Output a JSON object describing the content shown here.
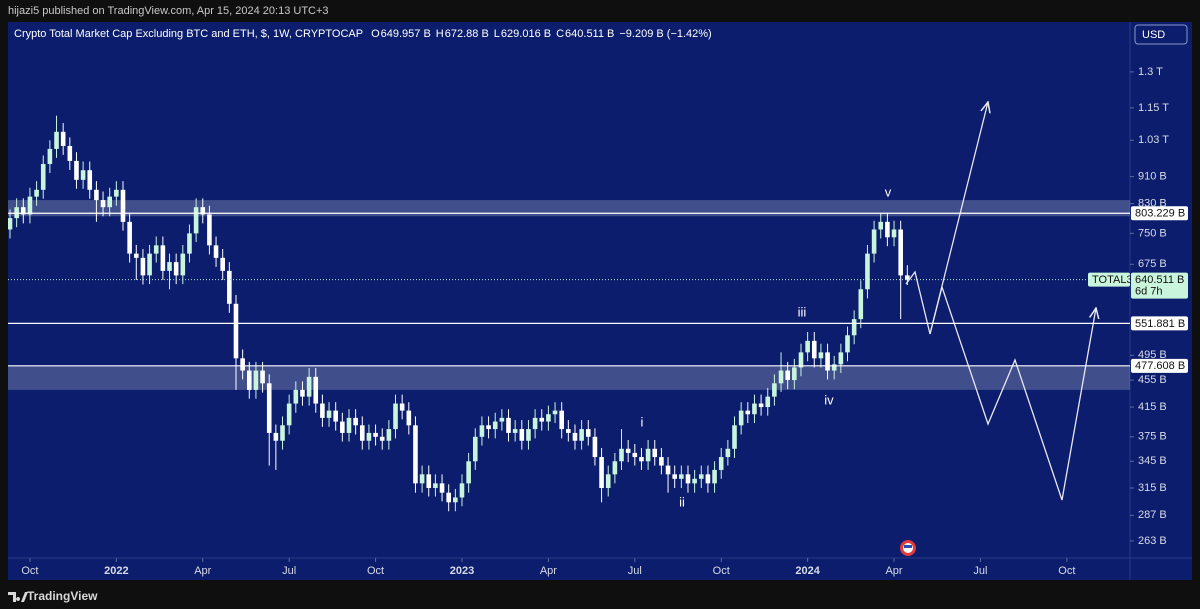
{
  "header": {
    "publisher": "hijazi5 published on TradingView.com, Apr 15, 2024 20:13 UTC+3"
  },
  "footer": {
    "brand": "TradingView"
  },
  "chart_data": {
    "type": "candlestick",
    "title": "Crypto Total Market Cap Excluding BTC and ETH, $, 1W, CRYPTOCAP",
    "legend": [
      {
        "key": "O",
        "text": "649.957 B"
      },
      {
        "key": "H",
        "text": "672.88 B"
      },
      {
        "key": "L",
        "text": "629.016 B"
      },
      {
        "key": "C",
        "text": "640.511 B"
      }
    ],
    "change": "−9.209 B (−1.42%)",
    "currency": "USD",
    "log_scale": true,
    "up_color": "#c9f5dc",
    "down_color": "#ffffff",
    "ylim": [
      249,
      1541
    ],
    "yticks": [
      {
        "value": 263,
        "label": "263 B"
      },
      {
        "value": 287,
        "label": "287 B"
      },
      {
        "value": 315,
        "label": "315 B"
      },
      {
        "value": 345,
        "label": "345 B"
      },
      {
        "value": 375,
        "label": "375 B"
      },
      {
        "value": 415,
        "label": "415 B"
      },
      {
        "value": 455,
        "label": "455 B"
      },
      {
        "value": 495,
        "label": "495 B"
      },
      {
        "value": 675,
        "label": "675 B"
      },
      {
        "value": 750,
        "label": "750 B"
      },
      {
        "value": 830,
        "label": "830 B"
      },
      {
        "value": 910,
        "label": "910 B"
      },
      {
        "value": 1030,
        "label": "1.03 T"
      },
      {
        "value": 1150,
        "label": "1.15 T"
      },
      {
        "value": 1300,
        "label": "1.3 T"
      }
    ],
    "xlim": [
      -0.3,
      168.5
    ],
    "xticks": [
      {
        "value": 3,
        "label": "Oct"
      },
      {
        "value": 16,
        "label": "2022"
      },
      {
        "value": 29,
        "label": "Apr"
      },
      {
        "value": 42,
        "label": "Jul"
      },
      {
        "value": 55,
        "label": "Oct"
      },
      {
        "value": 68,
        "label": "2023"
      },
      {
        "value": 81,
        "label": "Apr"
      },
      {
        "value": 94,
        "label": "Jul"
      },
      {
        "value": 107,
        "label": "Oct"
      },
      {
        "value": 120,
        "label": "2024"
      },
      {
        "value": 133,
        "label": "Apr"
      },
      {
        "value": 146,
        "label": "Jul"
      },
      {
        "value": 159,
        "label": "Oct"
      }
    ],
    "zones": [
      [
        795,
        840
      ],
      [
        440,
        477.608
      ]
    ],
    "levels": [
      {
        "value": 803.229,
        "label": "803.229 B"
      },
      {
        "value": 551.881,
        "label": "551.881 B"
      },
      {
        "value": 477.608,
        "label": "477.608 B"
      }
    ],
    "last": {
      "value": 640.511,
      "label": "640.511 B",
      "symbol": "TOTAL3",
      "countdown": "6d 7h"
    },
    "wave_labels": [
      "i",
      "ii",
      "iii",
      "iv",
      "v"
    ],
    "candles": [
      [
        760,
        814,
        737,
        790
      ],
      [
        790,
        845,
        766,
        820
      ],
      [
        820,
        845,
        776,
        800
      ],
      [
        800,
        876,
        776,
        850
      ],
      [
        850,
        896,
        824,
        870
      ],
      [
        870,
        978,
        844,
        950
      ],
      [
        950,
        1030,
        921,
        1000
      ],
      [
        1000,
        1120,
        970,
        1060
      ],
      [
        1060,
        1092,
        980,
        1010
      ],
      [
        1010,
        1040,
        931,
        960
      ],
      [
        960,
        989,
        873,
        900
      ],
      [
        900,
        958,
        873,
        930
      ],
      [
        930,
        958,
        844,
        870
      ],
      [
        870,
        896,
        780,
        840
      ],
      [
        840,
        865,
        795,
        820
      ],
      [
        820,
        876,
        795,
        850
      ],
      [
        850,
        896,
        824,
        870
      ],
      [
        870,
        896,
        757,
        780
      ],
      [
        780,
        803,
        679,
        700
      ],
      [
        700,
        721,
        640,
        690
      ],
      [
        690,
        711,
        630,
        650
      ],
      [
        650,
        721,
        631,
        700
      ],
      [
        700,
        742,
        679,
        720
      ],
      [
        720,
        742,
        640,
        660
      ],
      [
        660,
        700,
        620,
        680
      ],
      [
        680,
        700,
        631,
        650
      ],
      [
        650,
        721,
        631,
        700
      ],
      [
        700,
        773,
        679,
        750
      ],
      [
        750,
        845,
        728,
        820
      ],
      [
        820,
        845,
        776,
        800
      ],
      [
        800,
        824,
        698,
        720
      ],
      [
        720,
        742,
        669,
        690
      ],
      [
        690,
        711,
        640,
        660
      ],
      [
        660,
        680,
        572,
        590
      ],
      [
        590,
        608,
        440,
        490
      ],
      [
        490,
        505,
        456,
        470
      ],
      [
        470,
        484,
        427,
        440
      ],
      [
        440,
        484,
        427,
        470
      ],
      [
        470,
        484,
        436,
        450
      ],
      [
        450,
        464,
        340,
        380
      ],
      [
        380,
        391,
        335,
        370
      ],
      [
        370,
        402,
        359,
        390
      ],
      [
        390,
        433,
        378,
        420
      ],
      [
        420,
        453,
        407,
        440
      ],
      [
        440,
        453,
        417,
        430
      ],
      [
        430,
        474,
        417,
        460
      ],
      [
        460,
        474,
        407,
        420
      ],
      [
        420,
        433,
        388,
        400
      ],
      [
        400,
        422,
        388,
        410
      ],
      [
        410,
        422,
        383,
        395
      ],
      [
        395,
        407,
        369,
        380
      ],
      [
        380,
        412,
        369,
        400
      ],
      [
        400,
        412,
        378,
        390
      ],
      [
        390,
        402,
        359,
        370
      ],
      [
        370,
        391,
        359,
        380
      ],
      [
        380,
        391,
        364,
        375
      ],
      [
        375,
        386,
        359,
        370
      ],
      [
        370,
        397,
        359,
        385
      ],
      [
        385,
        433,
        373,
        420
      ],
      [
        420,
        433,
        398,
        410
      ],
      [
        410,
        422,
        378,
        390
      ],
      [
        390,
        402,
        310,
        320
      ],
      [
        320,
        340,
        310,
        330
      ],
      [
        330,
        340,
        306,
        315
      ],
      [
        315,
        330,
        306,
        320
      ],
      [
        320,
        330,
        301,
        310
      ],
      [
        310,
        319,
        291,
        300
      ],
      [
        300,
        314,
        291,
        305
      ],
      [
        305,
        330,
        296,
        320
      ],
      [
        320,
        355,
        310,
        345
      ],
      [
        345,
        386,
        335,
        375
      ],
      [
        375,
        402,
        364,
        390
      ],
      [
        390,
        402,
        373,
        385
      ],
      [
        385,
        407,
        373,
        395
      ],
      [
        395,
        412,
        383,
        400
      ],
      [
        400,
        412,
        369,
        380
      ],
      [
        380,
        397,
        369,
        385
      ],
      [
        385,
        397,
        359,
        370
      ],
      [
        370,
        397,
        359,
        385
      ],
      [
        385,
        412,
        373,
        400
      ],
      [
        400,
        412,
        383,
        395
      ],
      [
        395,
        417,
        383,
        405
      ],
      [
        405,
        422,
        393,
        410
      ],
      [
        410,
        422,
        373,
        385
      ],
      [
        385,
        397,
        369,
        380
      ],
      [
        380,
        391,
        359,
        370
      ],
      [
        370,
        397,
        359,
        385
      ],
      [
        385,
        397,
        364,
        375
      ],
      [
        375,
        386,
        340,
        350
      ],
      [
        350,
        361,
        300,
        315
      ],
      [
        315,
        340,
        306,
        330
      ],
      [
        330,
        355,
        320,
        345
      ],
      [
        345,
        385,
        335,
        360
      ],
      [
        360,
        371,
        344,
        355
      ],
      [
        355,
        366,
        340,
        350
      ],
      [
        350,
        361,
        335,
        345
      ],
      [
        345,
        371,
        335,
        360
      ],
      [
        360,
        371,
        340,
        350
      ],
      [
        350,
        361,
        330,
        340
      ],
      [
        340,
        350,
        310,
        330
      ],
      [
        330,
        340,
        315,
        325
      ],
      [
        325,
        340,
        315,
        330
      ],
      [
        330,
        340,
        310,
        320
      ],
      [
        320,
        335,
        310,
        325
      ],
      [
        325,
        340,
        315,
        330
      ],
      [
        330,
        340,
        310,
        320
      ],
      [
        320,
        345,
        310,
        335
      ],
      [
        335,
        361,
        325,
        350
      ],
      [
        350,
        371,
        340,
        360
      ],
      [
        360,
        402,
        349,
        390
      ],
      [
        390,
        422,
        378,
        410
      ],
      [
        410,
        422,
        393,
        405
      ],
      [
        405,
        433,
        393,
        420
      ],
      [
        420,
        433,
        403,
        415
      ],
      [
        415,
        443,
        403,
        430
      ],
      [
        430,
        464,
        417,
        450
      ],
      [
        450,
        500,
        437,
        470
      ],
      [
        470,
        484,
        441,
        455
      ],
      [
        455,
        489,
        441,
        475
      ],
      [
        475,
        515,
        461,
        500
      ],
      [
        500,
        536,
        485,
        520
      ],
      [
        520,
        536,
        475,
        490
      ],
      [
        490,
        515,
        475,
        500
      ],
      [
        500,
        515,
        456,
        470
      ],
      [
        470,
        494,
        456,
        480
      ],
      [
        480,
        515,
        466,
        500
      ],
      [
        500,
        546,
        485,
        530
      ],
      [
        530,
        577,
        514,
        560
      ],
      [
        560,
        639,
        543,
        620
      ],
      [
        620,
        721,
        601,
        700
      ],
      [
        700,
        783,
        679,
        760
      ],
      [
        760,
        803,
        737,
        780
      ],
      [
        780,
        803,
        718,
        740
      ],
      [
        740,
        783,
        718,
        760
      ],
      [
        760,
        783,
        560,
        649.957
      ],
      [
        649.957,
        672.88,
        629.016,
        640.511
      ]
    ]
  }
}
